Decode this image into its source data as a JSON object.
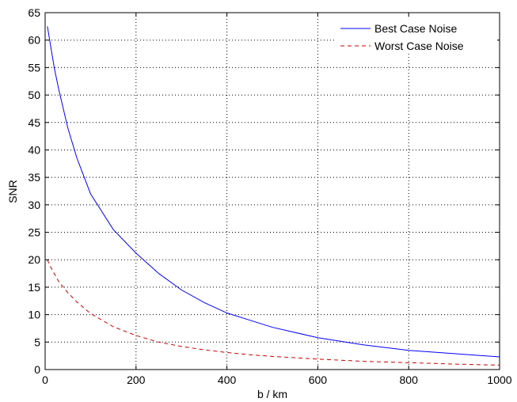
{
  "chart_data": {
    "type": "line",
    "xlabel": "b / km",
    "ylabel": "SNR",
    "xlim": [
      0,
      1000
    ],
    "ylim": [
      0,
      65
    ],
    "xticks": [
      0,
      200,
      400,
      600,
      800,
      1000
    ],
    "yticks": [
      0,
      5,
      10,
      15,
      20,
      25,
      30,
      35,
      40,
      45,
      50,
      55,
      60,
      65
    ],
    "grid": true,
    "legend_position": "top-right",
    "series": [
      {
        "name": "Best Case Noise",
        "color": "#0000ff",
        "style": "solid",
        "x": [
          5,
          10,
          20,
          30,
          50,
          70,
          100,
          150,
          200,
          250,
          300,
          350,
          400,
          450,
          500,
          600,
          700,
          800,
          900,
          1000
        ],
        "y": [
          62.5,
          60.0,
          55.0,
          51.0,
          44.0,
          38.5,
          32.0,
          25.5,
          21.2,
          17.5,
          14.5,
          12.2,
          10.3,
          9.0,
          7.7,
          5.8,
          4.5,
          3.5,
          2.9,
          2.3
        ]
      },
      {
        "name": "Worst Case Noise",
        "color": "#cc0000",
        "style": "dashed",
        "x": [
          5,
          10,
          20,
          30,
          50,
          70,
          100,
          150,
          200,
          250,
          300,
          350,
          400,
          450,
          500,
          600,
          700,
          800,
          900,
          1000
        ],
        "y": [
          20.0,
          19.0,
          17.5,
          16.0,
          14.0,
          12.3,
          10.2,
          7.8,
          6.2,
          5.0,
          4.2,
          3.6,
          3.1,
          2.7,
          2.4,
          1.9,
          1.5,
          1.25,
          1.0,
          0.8
        ]
      }
    ]
  }
}
